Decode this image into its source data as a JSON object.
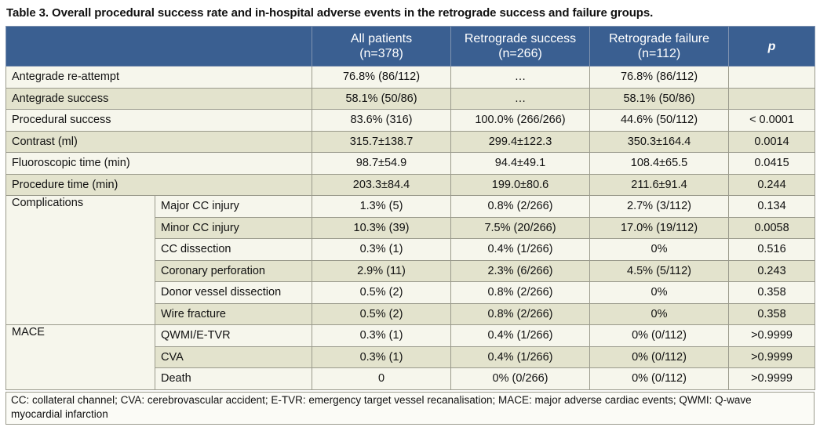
{
  "caption": "Table 3. Overall procedural success rate and in-hospital adverse events in the retrograde success and failure groups.",
  "header": {
    "all_line1": "All patients",
    "all_line2": "(n=378)",
    "success_line1": "Retrograde success",
    "success_line2": "(n=266)",
    "failure_line1": "Retrograde failure",
    "failure_line2": "(n=112)",
    "p": "p"
  },
  "rows": [
    {
      "label": "Antegrade re-attempt",
      "all": "76.8% (86/112)",
      "success": "…",
      "failure": "76.8% (86/112)",
      "p": ""
    },
    {
      "label": "Antegrade success",
      "all": "58.1% (50/86)",
      "success": "…",
      "failure": "58.1% (50/86)",
      "p": ""
    },
    {
      "label": "Procedural success",
      "all": "83.6% (316)",
      "success": "100.0% (266/266)",
      "failure": "44.6% (50/112)",
      "p": "< 0.0001"
    },
    {
      "label": "Contrast (ml)",
      "all": "315.7±138.7",
      "success": "299.4±122.3",
      "failure": "350.3±164.4",
      "p": "0.0014"
    },
    {
      "label": "Fluoroscopic time (min)",
      "all": "98.7±54.9",
      "success": "94.4±49.1",
      "failure": "108.4±65.5",
      "p": "0.0415"
    },
    {
      "label": "Procedure time (min)",
      "all": "203.3±84.4",
      "success": "199.0±80.6",
      "failure": "211.6±91.4",
      "p": "0.244"
    }
  ],
  "complications": {
    "label": "Complications",
    "rows": [
      {
        "sub": "Major CC injury",
        "all": "1.3% (5)",
        "success": "0.8% (2/266)",
        "failure": "2.7% (3/112)",
        "p": "0.134"
      },
      {
        "sub": "Minor CC injury",
        "all": "10.3% (39)",
        "success": "7.5% (20/266)",
        "failure": "17.0% (19/112)",
        "p": "0.0058"
      },
      {
        "sub": "CC dissection",
        "all": "0.3% (1)",
        "success": "0.4% (1/266)",
        "failure": "0%",
        "p": "0.516"
      },
      {
        "sub": "Coronary perforation",
        "all": "2.9% (11)",
        "success": "2.3% (6/266)",
        "failure": "4.5% (5/112)",
        "p": "0.243"
      },
      {
        "sub": "Donor vessel dissection",
        "all": "0.5% (2)",
        "success": "0.8% (2/266)",
        "failure": "0%",
        "p": "0.358"
      },
      {
        "sub": "Wire fracture",
        "all": "0.5% (2)",
        "success": "0.8% (2/266)",
        "failure": "0%",
        "p": "0.358"
      }
    ]
  },
  "mace": {
    "label": "MACE",
    "rows": [
      {
        "sub": "QWMI/E-TVR",
        "all": "0.3% (1)",
        "success": "0.4% (1/266)",
        "failure": "0% (0/112)",
        "p": ">0.9999"
      },
      {
        "sub": "CVA",
        "all": "0.3% (1)",
        "success": "0.4% (1/266)",
        "failure": "0% (0/112)",
        "p": ">0.9999"
      },
      {
        "sub": "Death",
        "all": "0",
        "success": "0% (0/266)",
        "failure": "0% (0/112)",
        "p": ">0.9999"
      }
    ]
  },
  "footnote_line1": "CC: collateral channel; CVA: cerebrovascular accident; E-TVR: emergency target vessel recanalisation; MACE: major adverse cardiac events; QWMI: Q-wave",
  "footnote_line2": "myocardial infarction"
}
